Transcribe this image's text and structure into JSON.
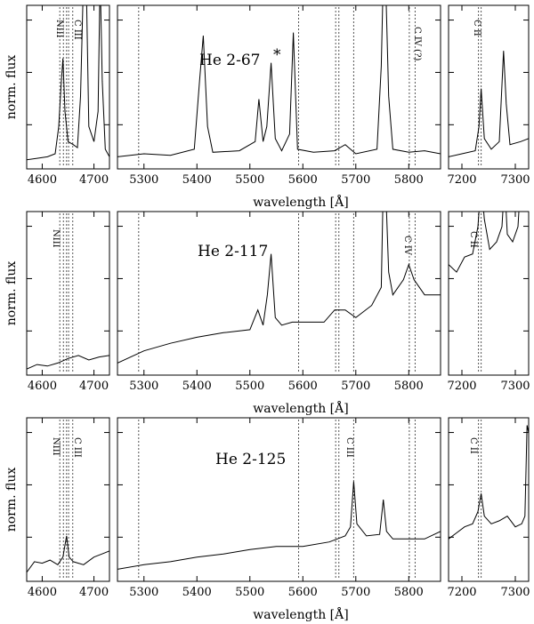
{
  "chart_data": {
    "type": "line",
    "ylabel": "norm. flux",
    "xlabel": "wavelength  [Å]",
    "x_segments": [
      {
        "xlim": [
          4570,
          4730
        ],
        "ticks": [
          4600,
          4700
        ]
      },
      {
        "xlim": [
          5250,
          5860
        ],
        "ticks": [
          5300,
          5400,
          5500,
          5600,
          5700,
          5800
        ]
      },
      {
        "xlim": [
          7175,
          7325
        ],
        "ticks": [
          7200,
          7300
        ]
      }
    ],
    "line_markers": [
      4634,
      4641,
      4647,
      4651,
      4659,
      5290,
      5592,
      5662,
      5668,
      5696,
      5801,
      5812,
      7231,
      7236
    ],
    "panels": [
      {
        "name": "He 2-67",
        "name_mark": "*",
        "line_labels": [
          "NIII",
          "C III",
          "C IV (?)",
          "C II"
        ],
        "series": {
          "x": [
            4570,
            4590,
            4610,
            4625,
            4632,
            4636,
            4640,
            4644,
            4650,
            4660,
            4668,
            4674,
            4680,
            4685,
            4690,
            4700,
            4708,
            4712,
            4716,
            4722,
            4730,
            5250,
            5300,
            5350,
            5395,
            5405,
            5412,
            5420,
            5430,
            5480,
            5510,
            5517,
            5525,
            5532,
            5540,
            5548,
            5560,
            5575,
            5582,
            5590,
            5620,
            5660,
            5680,
            5700,
            5740,
            5748,
            5752,
            5756,
            5762,
            5770,
            5800,
            5830,
            5860,
            7175,
            7200,
            7225,
            7232,
            7236,
            7242,
            7255,
            7270,
            7278,
            7283,
            7290,
            7310,
            7325
          ],
          "y": [
            0.98,
            0.99,
            1.0,
            1.02,
            1.2,
            1.45,
            1.65,
            1.3,
            1.1,
            1.08,
            1.06,
            1.4,
            3.0,
            3.0,
            1.2,
            1.1,
            1.3,
            2.2,
            1.5,
            1.05,
            1.0,
            1.0,
            1.02,
            1.01,
            1.05,
            1.5,
            1.8,
            1.2,
            1.03,
            1.04,
            1.1,
            1.38,
            1.1,
            1.2,
            1.62,
            1.12,
            1.04,
            1.15,
            1.82,
            1.05,
            1.03,
            1.04,
            1.08,
            1.02,
            1.05,
            1.6,
            3.0,
            3.0,
            1.4,
            1.05,
            1.03,
            1.04,
            1.02,
            1.0,
            1.02,
            1.04,
            1.2,
            1.45,
            1.12,
            1.05,
            1.1,
            1.7,
            1.35,
            1.08,
            1.1,
            1.12
          ]
        }
      },
      {
        "name": "He 2-117",
        "line_labels": [
          "NIII",
          "C IV",
          "C II"
        ],
        "series": {
          "x": [
            4570,
            4590,
            4610,
            4630,
            4650,
            4670,
            4690,
            4710,
            4730,
            5250,
            5300,
            5350,
            5400,
            5450,
            5500,
            5515,
            5525,
            5533,
            5540,
            5548,
            5560,
            5580,
            5600,
            5640,
            5660,
            5680,
            5700,
            5730,
            5748,
            5752,
            5756,
            5762,
            5770,
            5790,
            5800,
            5810,
            5830,
            5860,
            7175,
            7190,
            7205,
            7220,
            7230,
            7236,
            7242,
            7252,
            7265,
            7275,
            7280,
            7285,
            7295,
            7305,
            7310,
            7315,
            7325
          ],
          "y": [
            0.96,
            0.99,
            0.98,
            1.0,
            1.03,
            1.05,
            1.02,
            1.04,
            1.05,
            1.0,
            1.08,
            1.13,
            1.17,
            1.2,
            1.22,
            1.35,
            1.25,
            1.45,
            1.72,
            1.3,
            1.25,
            1.27,
            1.27,
            1.27,
            1.35,
            1.35,
            1.3,
            1.38,
            1.5,
            3.0,
            3.0,
            1.6,
            1.45,
            1.55,
            1.65,
            1.55,
            1.45,
            1.45,
            1.65,
            1.6,
            1.7,
            1.72,
            1.9,
            2.55,
            1.95,
            1.75,
            1.8,
            1.9,
            3.0,
            1.85,
            1.8,
            1.9,
            3.0,
            3.0,
            3.0
          ]
        }
      },
      {
        "name": "He 2-125",
        "line_labels": [
          "NIII",
          "C III",
          "C III",
          "C II"
        ],
        "series": {
          "x": [
            4570,
            4585,
            4600,
            4615,
            4630,
            4640,
            4647,
            4652,
            4660,
            4680,
            4700,
            4715,
            4730,
            5250,
            5300,
            5350,
            5400,
            5450,
            5500,
            5550,
            5600,
            5650,
            5680,
            5690,
            5696,
            5702,
            5720,
            5745,
            5752,
            5758,
            5770,
            5800,
            5830,
            5860,
            7175,
            7190,
            7205,
            7220,
            7230,
            7236,
            7242,
            7255,
            7270,
            7285,
            7300,
            7312,
            7318,
            7322,
            7325
          ],
          "y": [
            0.98,
            1.05,
            1.04,
            1.06,
            1.03,
            1.08,
            1.22,
            1.08,
            1.05,
            1.03,
            1.08,
            1.1,
            1.12,
            1.0,
            1.03,
            1.05,
            1.08,
            1.1,
            1.13,
            1.15,
            1.15,
            1.18,
            1.22,
            1.28,
            1.58,
            1.3,
            1.22,
            1.23,
            1.46,
            1.25,
            1.2,
            1.2,
            1.2,
            1.25,
            1.2,
            1.24,
            1.28,
            1.3,
            1.38,
            1.5,
            1.35,
            1.3,
            1.32,
            1.35,
            1.28,
            1.3,
            1.35,
            1.95,
            1.9
          ]
        }
      }
    ]
  }
}
